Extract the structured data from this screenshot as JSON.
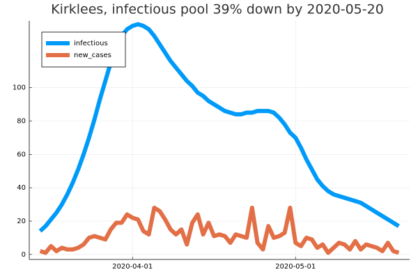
{
  "chart_data": {
    "type": "line",
    "title": "Kirklees, infectious pool 39% down by 2020-05-20",
    "x": [
      "2020-03-15",
      "2020-03-16",
      "2020-03-17",
      "2020-03-18",
      "2020-03-19",
      "2020-03-20",
      "2020-03-21",
      "2020-03-22",
      "2020-03-23",
      "2020-03-24",
      "2020-03-25",
      "2020-03-26",
      "2020-03-27",
      "2020-03-28",
      "2020-03-29",
      "2020-03-30",
      "2020-03-31",
      "2020-04-01",
      "2020-04-02",
      "2020-04-03",
      "2020-04-04",
      "2020-04-05",
      "2020-04-06",
      "2020-04-07",
      "2020-04-08",
      "2020-04-09",
      "2020-04-10",
      "2020-04-11",
      "2020-04-12",
      "2020-04-13",
      "2020-04-14",
      "2020-04-15",
      "2020-04-16",
      "2020-04-17",
      "2020-04-18",
      "2020-04-19",
      "2020-04-20",
      "2020-04-21",
      "2020-04-22",
      "2020-04-23",
      "2020-04-24",
      "2020-04-25",
      "2020-04-26",
      "2020-04-27",
      "2020-04-28",
      "2020-04-29",
      "2020-04-30",
      "2020-05-01",
      "2020-05-02",
      "2020-05-03",
      "2020-05-04",
      "2020-05-05",
      "2020-05-06",
      "2020-05-07",
      "2020-05-08",
      "2020-05-09",
      "2020-05-10",
      "2020-05-11",
      "2020-05-12",
      "2020-05-13",
      "2020-05-14",
      "2020-05-15",
      "2020-05-16",
      "2020-05-17",
      "2020-05-18",
      "2020-05-19",
      "2020-05-20"
    ],
    "series": [
      {
        "name": "infectious",
        "color": "#009af9",
        "values": [
          14,
          17,
          21,
          25,
          30,
          36,
          43,
          51,
          60,
          70,
          81,
          93,
          104,
          115,
          124,
          131,
          135,
          137,
          138,
          137,
          135,
          131,
          126,
          121,
          116,
          112,
          108,
          104,
          101,
          97,
          95,
          92,
          90,
          88,
          86,
          85,
          84,
          84,
          85,
          85,
          86,
          86,
          86,
          85,
          82,
          78,
          73,
          70,
          64,
          57,
          51,
          45,
          41,
          38,
          36,
          35,
          34,
          33,
          32,
          31,
          29,
          27,
          25,
          23,
          21,
          19,
          17
        ]
      },
      {
        "name": "new_cases",
        "color": "#e26f46",
        "values": [
          2,
          1,
          5,
          2,
          4,
          3,
          3,
          4,
          6,
          10,
          11,
          10,
          9,
          15,
          19,
          19,
          24,
          22,
          21,
          14,
          12,
          28,
          26,
          21,
          15,
          12,
          15,
          6,
          19,
          24,
          12,
          19,
          11,
          12,
          11,
          7,
          12,
          11,
          10,
          28,
          7,
          3,
          17,
          10,
          11,
          13,
          28,
          7,
          5,
          10,
          9,
          4,
          6,
          1,
          4,
          7,
          6,
          3,
          8,
          3,
          6,
          5,
          4,
          2,
          7,
          2,
          1
        ]
      }
    ],
    "xlim": [
      "2020-03-13",
      "2020-05-22"
    ],
    "xticks": [
      "2020-04-01",
      "2020-05-01"
    ],
    "ylim": [
      -3,
      140
    ],
    "yticks": [
      0,
      20,
      40,
      60,
      80,
      100
    ],
    "grid": true,
    "legend": "top-left"
  }
}
